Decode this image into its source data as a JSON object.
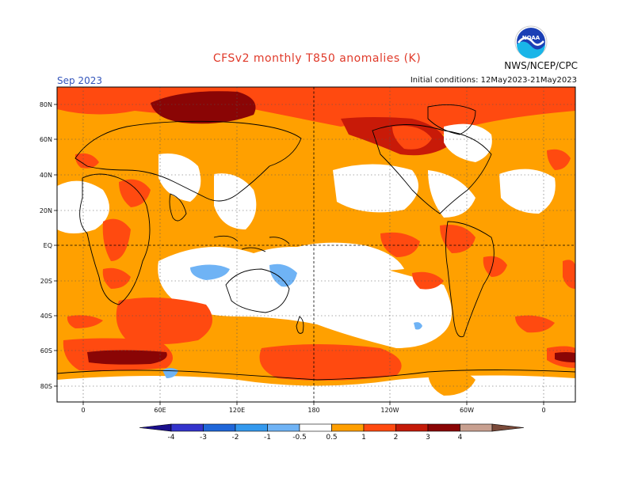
{
  "header": {
    "title": "CFSv2 monthly T850 anomalies (K)",
    "agency": "NWS/NCEP/CPC",
    "logo_text": "NOAA",
    "month": "Sep 2023",
    "initial_conditions": "Initial conditions: 12May2023-21May2023"
  },
  "axes": {
    "lat_labels": [
      "80N",
      "60N",
      "40N",
      "20N",
      "EQ",
      "20S",
      "40S",
      "60S",
      "80S"
    ],
    "lon_labels": [
      "0",
      "60E",
      "120E",
      "180",
      "120W",
      "60W",
      "0"
    ]
  },
  "colorbar": {
    "labels": [
      "-4",
      "-3",
      "-2",
      "-1",
      "-0.5",
      "0.5",
      "1",
      "2",
      "3",
      "4"
    ],
    "colors": [
      "#1a0f8c",
      "#3333cc",
      "#1f66d9",
      "#3399ee",
      "#6fb3f5",
      "#ffffff",
      "#ff9f00",
      "#ff4a10",
      "#c41a08",
      "#8a0505",
      "#c8a090",
      "#7a4a3a"
    ]
  },
  "colors": {
    "land_outline": "#000000",
    "grid": "#555555",
    "background": "#ffffff",
    "anom_0_5_1": "#ffa000",
    "anom_1_2": "#ff4a10",
    "anom_2_3": "#c81a08",
    "anom_3_4": "#8a0505",
    "anom_neg_1_0_5": "#6fb3f5",
    "title": "#e03a2a",
    "month": "#3355bb"
  }
}
